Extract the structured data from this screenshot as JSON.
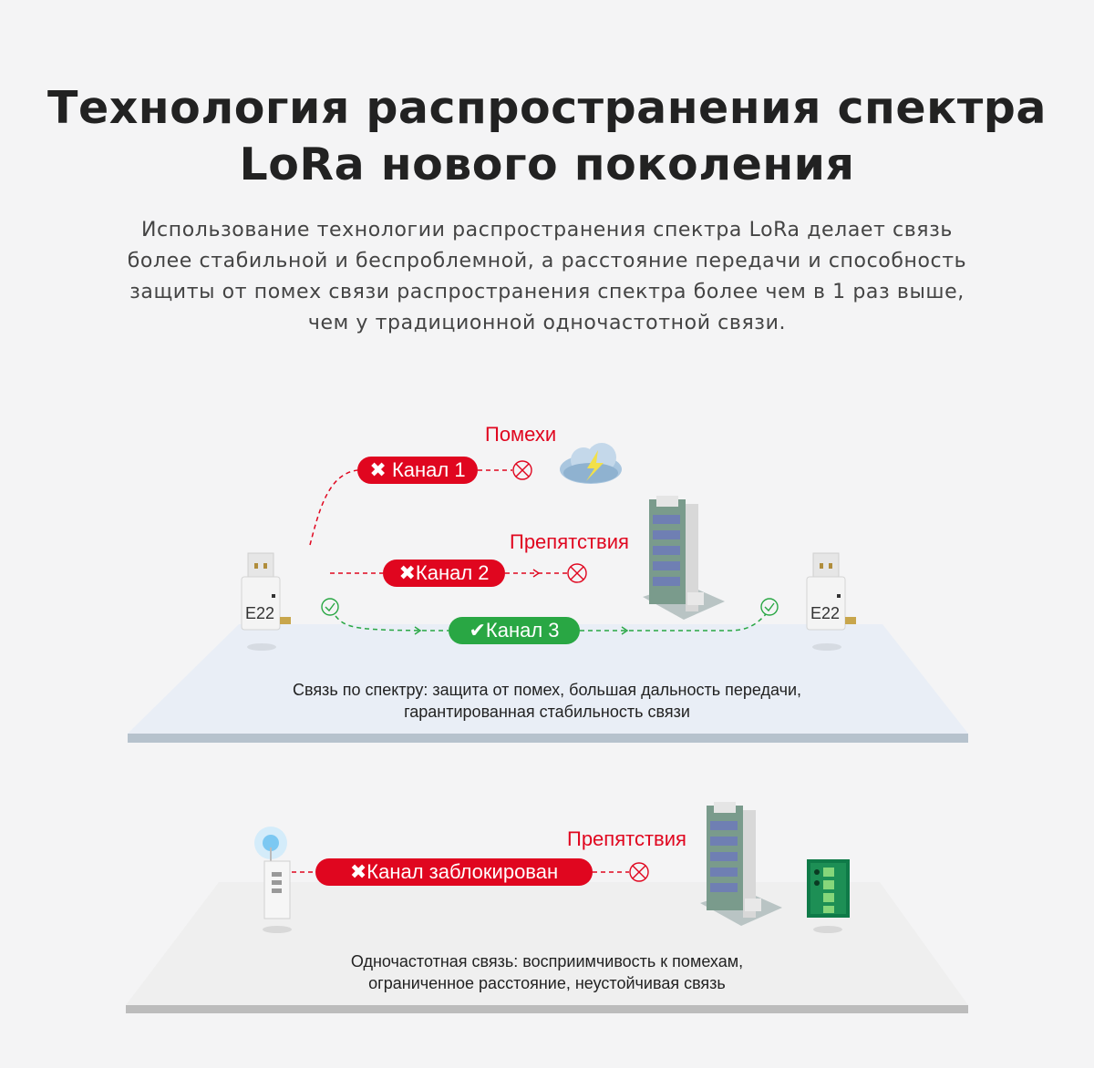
{
  "header": {
    "title_line1": "Технология распространения спектра",
    "title_line2": "LoRa нового поколения",
    "subtitle": "Использование технологии распространения спектра LoRa делает связь более стабильной и беспроблемной, а расстояние передачи и способность защиты от помех связи распространения спектра более чем в 1 раз выше, чем у традиционной одночастотной связи."
  },
  "spread_spectrum": {
    "interference_label": "Помехи",
    "obstacle_label": "Препятствия",
    "channel1": {
      "icon": "cross-icon",
      "label": "Канал 1",
      "status": "blocked"
    },
    "channel2": {
      "icon": "cross-icon",
      "label": "Канал 2",
      "status": "blocked"
    },
    "channel3": {
      "icon": "check-icon",
      "label": "Канал 3",
      "status": "ok"
    },
    "device_left": "E22",
    "device_right": "E22",
    "caption_line1": "Связь по спектру: защита от помех, большая дальность передачи,",
    "caption_line2": "гарантированная стабильность связи"
  },
  "single_frequency": {
    "obstacle_label": "Препятствия",
    "channel": {
      "icon": "cross-icon",
      "label": "Канал заблокирован",
      "status": "blocked"
    },
    "caption_line1": "Одночастотная связь: восприимчивость к помехам,",
    "caption_line2": "ограниченное расстояние, неустойчивая связь"
  },
  "colors": {
    "blocked": "#e0061f",
    "ok": "#29a744",
    "background": "#f4f4f5"
  }
}
